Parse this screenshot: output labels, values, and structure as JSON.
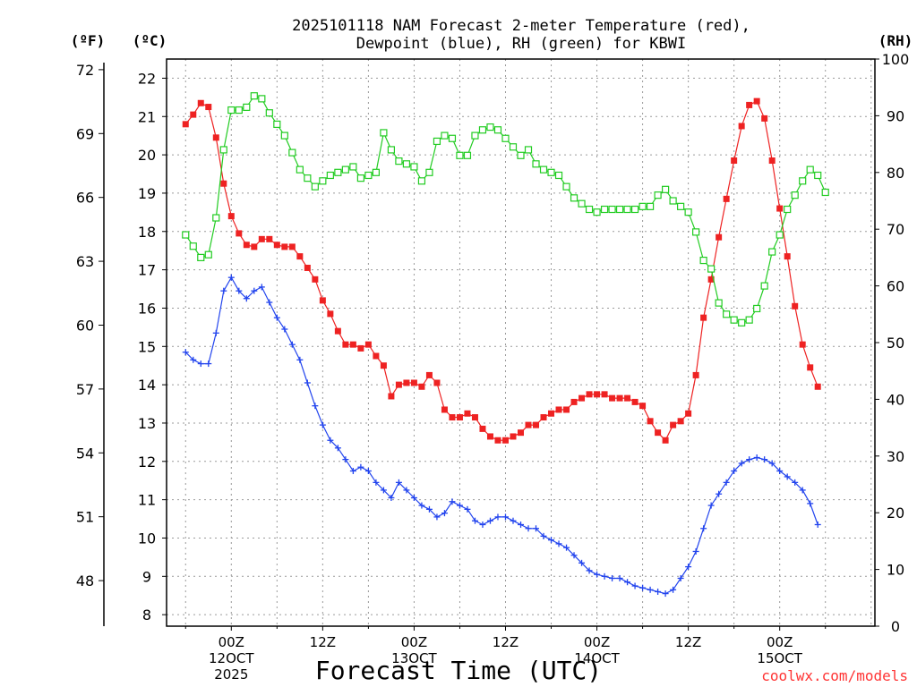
{
  "chart_data": {
    "type": "line",
    "title": "2025101118 NAM Forecast 2-meter Temperature (red), Dewpoint (blue), RH (green) for KBWI",
    "title_lines": [
      "2025101118 NAM Forecast 2-meter Temperature (red),",
      "Dewpoint (blue), RH (green) for KBWI"
    ],
    "xlabel": "Forecast Time (UTC)",
    "credit": "coolwx.com/models",
    "units": {
      "fahrenheit": "(ºF)",
      "celsius": "(ºC)",
      "rh": "(RH)"
    },
    "x_range_hours": [
      -8.5,
      84.5
    ],
    "y_celsius_range": [
      7.7,
      22.5
    ],
    "y_rh_range": [
      0,
      100
    ],
    "y_celsius_ticks": [
      "8",
      "9",
      "10",
      "11",
      "12",
      "13",
      "14",
      "15",
      "16",
      "17",
      "18",
      "19",
      "20",
      "21",
      "22"
    ],
    "y_fahrenheit_ticks": [
      "48",
      "51",
      "54",
      "57",
      "60",
      "63",
      "66",
      "69",
      "72"
    ],
    "y_rh_ticks": [
      "0",
      "10",
      "20",
      "30",
      "40",
      "50",
      "60",
      "70",
      "80",
      "90",
      "100"
    ],
    "x_ticks": [
      {
        "hour": 0,
        "lines": [
          "00Z",
          "12OCT",
          "2025"
        ]
      },
      {
        "hour": 12,
        "lines": [
          "12Z"
        ]
      },
      {
        "hour": 24,
        "lines": [
          "00Z",
          "13OCT"
        ]
      },
      {
        "hour": 36,
        "lines": [
          "12Z"
        ]
      },
      {
        "hour": 48,
        "lines": [
          "00Z",
          "14OCT"
        ]
      },
      {
        "hour": 60,
        "lines": [
          "12Z"
        ]
      },
      {
        "hour": 72,
        "lines": [
          "00Z",
          "15OCT"
        ]
      }
    ],
    "x_hours": [
      -6,
      -5,
      -4,
      -3,
      -2,
      -1,
      0,
      1,
      2,
      3,
      4,
      5,
      6,
      7,
      8,
      9,
      10,
      11,
      12,
      13,
      14,
      15,
      16,
      17,
      18,
      19,
      20,
      21,
      22,
      23,
      24,
      25,
      26,
      27,
      28,
      29,
      30,
      31,
      32,
      33,
      34,
      35,
      36,
      37,
      38,
      39,
      40,
      41,
      42,
      43,
      44,
      45,
      46,
      47,
      48,
      49,
      50,
      51,
      52,
      53,
      54,
      55,
      56,
      57,
      58,
      59,
      60,
      61,
      62,
      63,
      64,
      65,
      66,
      67,
      68,
      69,
      70,
      71,
      72,
      73,
      74,
      75,
      76,
      77,
      78,
      79,
      80,
      81,
      82,
      83,
      84
    ],
    "series": [
      {
        "name": "2-meter Temperature",
        "color": "#ee2222",
        "axis": "celsius",
        "marker": "filled-square",
        "values": [
          20.8,
          21.05,
          21.35,
          21.25,
          20.45,
          19.25,
          18.4,
          17.95,
          17.65,
          17.6,
          17.8,
          17.8,
          17.65,
          17.6,
          17.6,
          17.35,
          17.05,
          16.75,
          16.2,
          15.85,
          15.4,
          15.05,
          15.05,
          14.95,
          15.05,
          14.75,
          14.5,
          13.7,
          14.0,
          14.05,
          14.05,
          13.95,
          14.25,
          14.05,
          13.35,
          13.15,
          13.15,
          13.25,
          13.15,
          12.85,
          12.65,
          12.55,
          12.55,
          12.65,
          12.75,
          12.95,
          12.95,
          13.15,
          13.25,
          13.35,
          13.35,
          13.55,
          13.65,
          13.75,
          13.75,
          13.75,
          13.65,
          13.65,
          13.65,
          13.55,
          13.45,
          13.05,
          12.75,
          12.55,
          12.95,
          13.05,
          13.25,
          14.25,
          15.75,
          16.75,
          17.85,
          18.85,
          19.85,
          20.75,
          21.3,
          21.4,
          20.95,
          19.85,
          18.6,
          17.35,
          16.05,
          15.05,
          14.45,
          13.95
        ],
        "series_start_hour": -6,
        "values_note": "hourly from -6 to 77 h"
      },
      {
        "name": "Dewpoint",
        "color": "#2244ee",
        "axis": "celsius",
        "marker": "plus",
        "values": [
          14.85,
          14.65,
          14.55,
          14.55,
          15.35,
          16.45,
          16.8,
          16.45,
          16.25,
          16.45,
          16.55,
          16.15,
          15.75,
          15.45,
          15.05,
          14.65,
          14.05,
          13.45,
          12.95,
          12.55,
          12.35,
          12.05,
          11.75,
          11.85,
          11.75,
          11.45,
          11.25,
          11.05,
          11.45,
          11.25,
          11.05,
          10.85,
          10.75,
          10.55,
          10.65,
          10.95,
          10.85,
          10.75,
          10.45,
          10.35,
          10.45,
          10.55,
          10.55,
          10.45,
          10.35,
          10.25,
          10.25,
          10.05,
          9.95,
          9.85,
          9.75,
          9.55,
          9.35,
          9.15,
          9.05,
          9.0,
          8.95,
          8.95,
          8.85,
          8.75,
          8.7,
          8.65,
          8.6,
          8.55,
          8.65,
          8.95,
          9.25,
          9.65,
          10.25,
          10.85,
          11.15,
          11.45,
          11.75,
          11.95,
          12.05,
          12.1,
          12.05,
          11.95,
          11.75,
          11.6,
          11.45,
          11.25,
          10.9,
          10.35
        ],
        "series_start_hour": -6
      },
      {
        "name": "RH",
        "color": "#22cc22",
        "axis": "rh",
        "marker": "open-square",
        "values": [
          69,
          67,
          65,
          65.5,
          72,
          84,
          91,
          91,
          91.5,
          93.5,
          93,
          90.5,
          88.5,
          86.5,
          83.5,
          80.5,
          79,
          77.5,
          78.5,
          79.5,
          80,
          80.5,
          81,
          79,
          79.5,
          80,
          87,
          84,
          82,
          81.5,
          81,
          78.5,
          80,
          85.5,
          86.5,
          86,
          83,
          83,
          86.5,
          87.5,
          88,
          87.5,
          86,
          84.5,
          83,
          84,
          81.5,
          80.5,
          80,
          79.5,
          77.5,
          75.5,
          74.5,
          73.5,
          73,
          73.5,
          73.5,
          73.5,
          73.5,
          73.5,
          74,
          74,
          76,
          77,
          75,
          74,
          73,
          69.5,
          64.5,
          63,
          57,
          55,
          54,
          53.5,
          54,
          56,
          60,
          66,
          69,
          73.5,
          76,
          78.5,
          80.5,
          79.5,
          76.5
        ],
        "series_start_hour": -6
      }
    ]
  }
}
